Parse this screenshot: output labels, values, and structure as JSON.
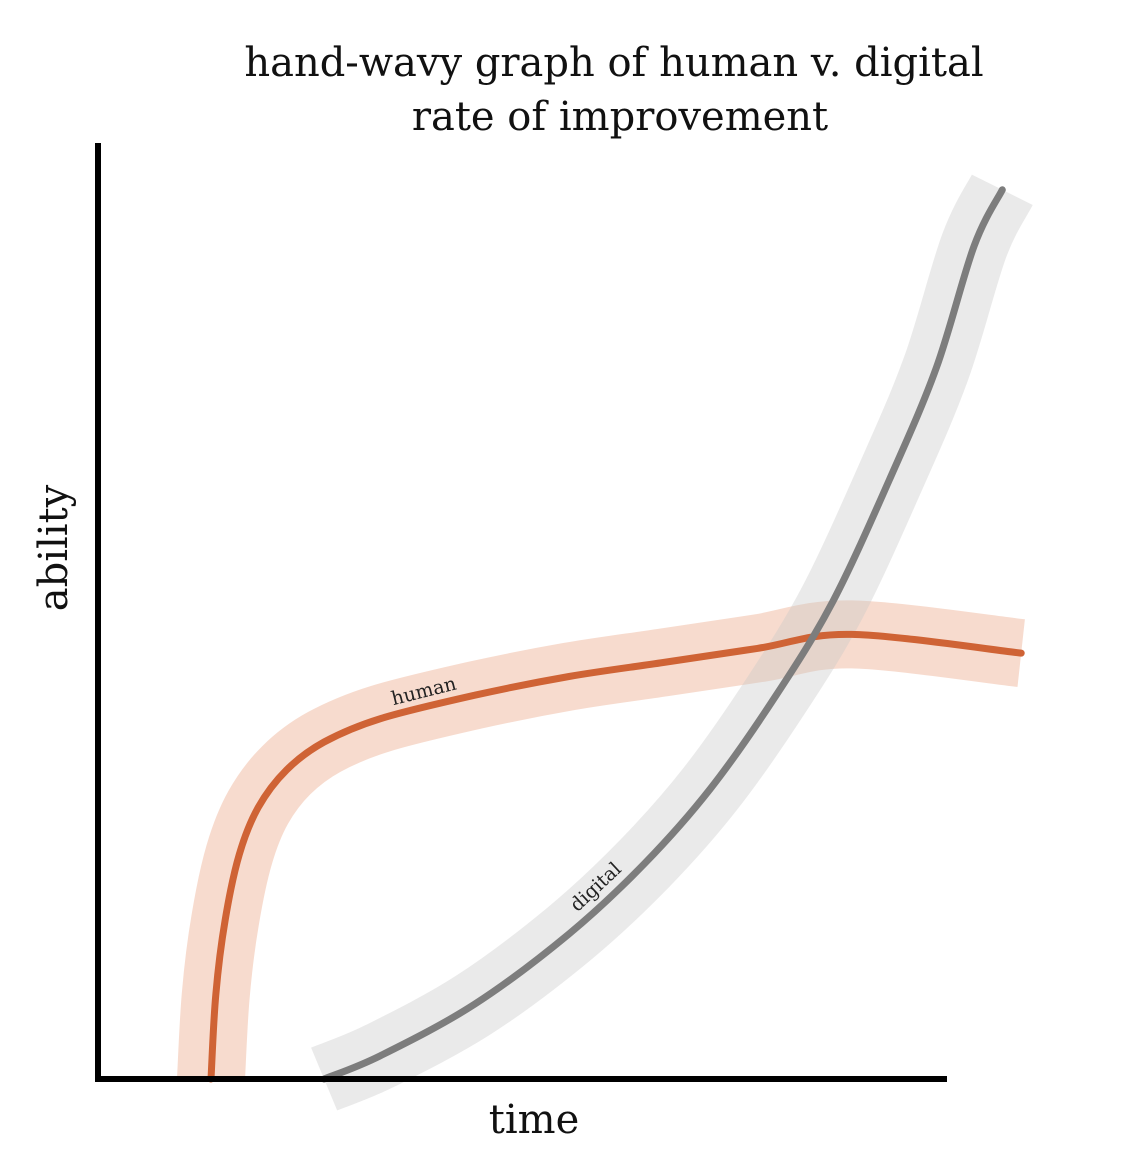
{
  "chart_data": {
    "type": "line",
    "title_lines": [
      "hand-wavy graph of human v. digital",
      "rate of improvement"
    ],
    "xlabel": "time",
    "ylabel": "ability",
    "xlim": [
      0,
      100
    ],
    "ylim": [
      0,
      100
    ],
    "grid": false,
    "ticks": false,
    "series": [
      {
        "name": "human",
        "color": "#cf6335",
        "band_color": "#e9a07f",
        "points": [
          [
            12,
            0
          ],
          [
            12.5,
            9
          ],
          [
            13.5,
            17
          ],
          [
            15,
            24
          ],
          [
            17,
            29
          ],
          [
            20,
            33
          ],
          [
            24,
            36
          ],
          [
            30,
            38.5
          ],
          [
            40,
            41
          ],
          [
            50,
            43
          ],
          [
            60,
            44.5
          ],
          [
            70,
            46
          ],
          [
            80,
            47.5
          ],
          [
            98,
            45.5
          ]
        ]
      },
      {
        "name": "digital",
        "color": "#7d7d7d",
        "band_color": "#c8c8c8",
        "points": [
          [
            24,
            0
          ],
          [
            30,
            2.5
          ],
          [
            40,
            8
          ],
          [
            50,
            15.5
          ],
          [
            58,
            23
          ],
          [
            65,
            31
          ],
          [
            72,
            41
          ],
          [
            78,
            51
          ],
          [
            84,
            64
          ],
          [
            89,
            76
          ],
          [
            93,
            89
          ],
          [
            96,
            95
          ]
        ]
      }
    ]
  }
}
